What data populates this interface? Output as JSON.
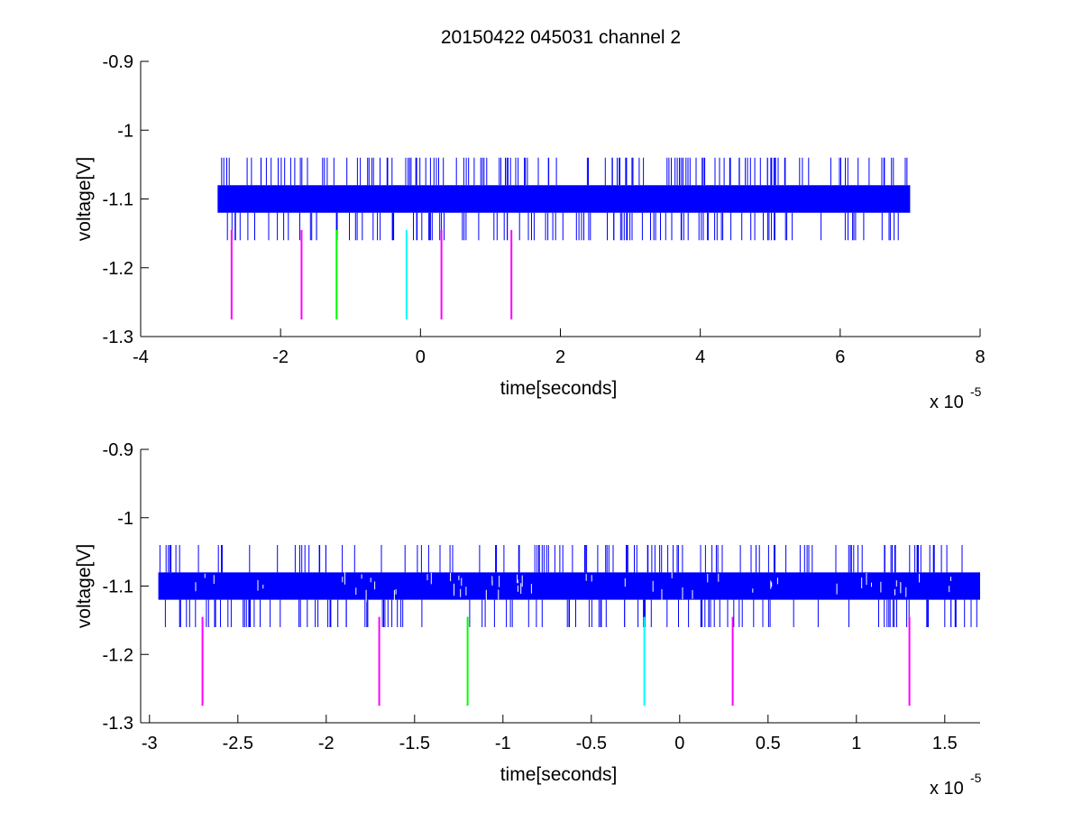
{
  "title": "20150422 045031 channel 2",
  "colors": {
    "signal": "#0000ff",
    "magenta": "#ff00ff",
    "green": "#00ff00",
    "cyan": "#00ffff",
    "axes": "#000000",
    "background": "#ffffff"
  },
  "chart_data": [
    {
      "type": "line",
      "title": "20150422 045031 channel 2",
      "xlabel": "time[seconds]",
      "ylabel": "voltage[V]",
      "x_scale_label": "x 10",
      "x_scale_exponent": "-5",
      "xlim": [
        -4,
        8
      ],
      "ylim": [
        -1.3,
        -0.9
      ],
      "xticks": [
        -4,
        -2,
        0,
        2,
        4,
        6,
        8
      ],
      "xtick_labels": [
        "-4",
        "-2",
        "0",
        "2",
        "4",
        "6",
        "8"
      ],
      "yticks": [
        -0.9,
        -1,
        -1.1,
        -1.2,
        -1.3
      ],
      "ytick_labels": [
        "-0.9",
        "-1",
        "-1.1",
        "-1.2",
        "-1.3"
      ],
      "grid": false,
      "series": [
        {
          "kind": "signal",
          "color": "#0000ff",
          "x_range": [
            -2.9,
            7.0
          ],
          "band": [
            -1.12,
            -1.08
          ],
          "spike_high": -1.04,
          "spike_low": -1.16
        }
      ],
      "markers": [
        {
          "x": -2.7,
          "y0": -1.275,
          "y1": -1.145,
          "color": "#ff00ff"
        },
        {
          "x": -1.7,
          "y0": -1.275,
          "y1": -1.145,
          "color": "#ff00ff"
        },
        {
          "x": -1.2,
          "y0": -1.275,
          "y1": -1.145,
          "color": "#00ff00"
        },
        {
          "x": -0.2,
          "y0": -1.275,
          "y1": -1.145,
          "color": "#00ffff"
        },
        {
          "x": 0.3,
          "y0": -1.275,
          "y1": -1.145,
          "color": "#ff00ff"
        },
        {
          "x": 1.3,
          "y0": -1.275,
          "y1": -1.145,
          "color": "#ff00ff"
        }
      ]
    },
    {
      "type": "line",
      "title": "",
      "xlabel": "time[seconds]",
      "ylabel": "voltage[V]",
      "x_scale_label": "x 10",
      "x_scale_exponent": "-5",
      "xlim": [
        -3.05,
        1.7
      ],
      "ylim": [
        -1.3,
        -0.9
      ],
      "xticks": [
        -3,
        -2.5,
        -2,
        -1.5,
        -1,
        -0.5,
        0,
        0.5,
        1,
        1.5
      ],
      "xtick_labels": [
        "-3",
        "-2.5",
        "-2",
        "-1.5",
        "-1",
        "-0.5",
        "0",
        "0.5",
        "1",
        "1.5"
      ],
      "yticks": [
        -0.9,
        -1,
        -1.1,
        -1.2,
        -1.3
      ],
      "ytick_labels": [
        "-0.9",
        "-1",
        "-1.1",
        "-1.2",
        "-1.3"
      ],
      "grid": false,
      "series": [
        {
          "kind": "signal",
          "color": "#0000ff",
          "x_range": [
            -2.95,
            1.7
          ],
          "band": [
            -1.12,
            -1.08
          ],
          "spike_high": -1.04,
          "spike_low": -1.16
        }
      ],
      "markers": [
        {
          "x": -2.7,
          "y0": -1.275,
          "y1": -1.145,
          "color": "#ff00ff"
        },
        {
          "x": -1.7,
          "y0": -1.275,
          "y1": -1.145,
          "color": "#ff00ff"
        },
        {
          "x": -1.2,
          "y0": -1.275,
          "y1": -1.145,
          "color": "#00ff00"
        },
        {
          "x": -0.2,
          "y0": -1.275,
          "y1": -1.145,
          "color": "#00ffff"
        },
        {
          "x": 0.3,
          "y0": -1.275,
          "y1": -1.145,
          "color": "#ff00ff"
        },
        {
          "x": 1.3,
          "y0": -1.275,
          "y1": -1.145,
          "color": "#ff00ff"
        }
      ]
    }
  ]
}
